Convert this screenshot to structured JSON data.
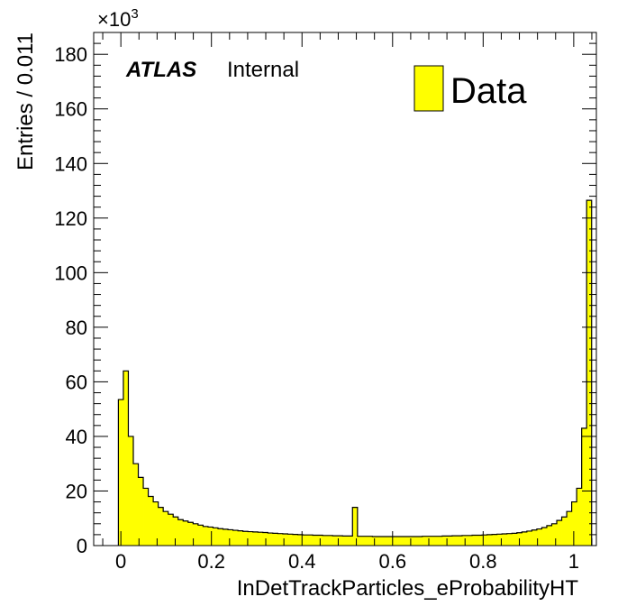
{
  "chart_data": {
    "type": "bar",
    "xlabel": "InDetTrackParticles_eProbabilityHT",
    "ylabel": "Entries / 0.011",
    "y_multiplier": "×10",
    "y_multiplier_exp": "3",
    "xlim": [
      -0.06,
      1.05
    ],
    "ylim": [
      0,
      188
    ],
    "x_ticks": [
      0,
      0.2,
      0.4,
      0.6,
      0.8,
      1
    ],
    "x_tick_labels": [
      "0",
      "0.2",
      "0.4",
      "0.6",
      "0.8",
      "1"
    ],
    "y_ticks": [
      0,
      20,
      40,
      60,
      80,
      100,
      120,
      140,
      160,
      180
    ],
    "y_tick_labels": [
      "0",
      "20",
      "40",
      "60",
      "80",
      "100",
      "120",
      "140",
      "160",
      "180"
    ],
    "bin_width": 0.011,
    "first_bin_low": -0.0055,
    "values": [
      53.5,
      64,
      40,
      30,
      25,
      21,
      18,
      16,
      14,
      12.5,
      11.5,
      10.5,
      9.5,
      9,
      8.5,
      8,
      7.5,
      7,
      6.8,
      6.5,
      6.2,
      6,
      5.8,
      5.6,
      5.4,
      5.2,
      5.1,
      5,
      4.9,
      4.8,
      4.6,
      4.5,
      4.4,
      4.3,
      4.2,
      4.1,
      4,
      3.9,
      3.9,
      3.8,
      3.8,
      3.7,
      3.7,
      3.6,
      3.6,
      3.5,
      3.5,
      14,
      3.4,
      3.4,
      3.4,
      3.3,
      3.3,
      3.3,
      3.3,
      3.3,
      3.3,
      3.3,
      3.3,
      3.3,
      3.3,
      3.4,
      3.4,
      3.4,
      3.4,
      3.5,
      3.5,
      3.6,
      3.6,
      3.7,
      3.7,
      3.8,
      3.8,
      3.9,
      4,
      4.1,
      4.2,
      4.3,
      4.4,
      4.5,
      4.7,
      5,
      5.3,
      5.7,
      6.1,
      6.6,
      7.3,
      8,
      9.2,
      10.5,
      12.5,
      16,
      21,
      43,
      126.5
    ],
    "fill_color": "#ffff00",
    "edge_color": "#000000",
    "legend": [
      {
        "name": "Data",
        "color": "#ffff00"
      }
    ],
    "legend_position": "top-right",
    "grid": false
  },
  "labels": {
    "atlas": "ATLAS",
    "status": "Internal"
  }
}
